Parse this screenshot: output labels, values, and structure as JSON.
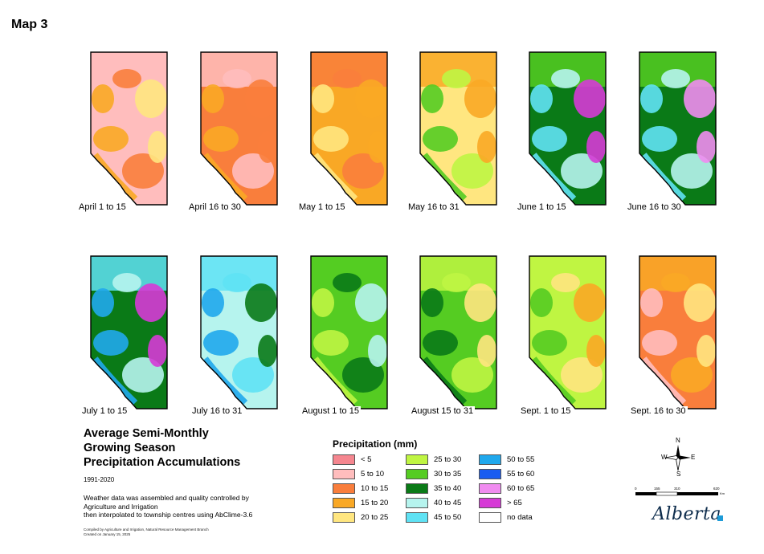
{
  "map_label": "Map 3",
  "title": {
    "line1": "Average Semi-Monthly",
    "line2": "Growing Season",
    "line3": "Precipitation Accumulations"
  },
  "period": "1991-2020",
  "note": {
    "line1": "Weather data was assembled and quality controlled by",
    "line2": "Agriculture and Irrigation",
    "line3": "then interpolated to township centres using AbClime-3.6"
  },
  "credit": {
    "line1": "Compiled by Agriculture and Irrigation, Natural Resource Management Branch",
    "line2": "Created on January 15, 2025"
  },
  "legend": {
    "title": "Precipitation (mm)",
    "items": [
      {
        "label": "< 5",
        "color": "#f5868f"
      },
      {
        "label": "5 to 10",
        "color": "#ffbdbd"
      },
      {
        "label": "10 to 15",
        "color": "#f97e3c"
      },
      {
        "label": "15 to 20",
        "color": "#f9a825"
      },
      {
        "label": "20 to 25",
        "color": "#ffe680"
      },
      {
        "label": "25 to 30",
        "color": "#bff542"
      },
      {
        "label": "30 to 35",
        "color": "#55cc22"
      },
      {
        "label": "35 to 40",
        "color": "#0a7a17"
      },
      {
        "label": "40 to 45",
        "color": "#b6f4ee"
      },
      {
        "label": "45 to 50",
        "color": "#5fe2f4"
      },
      {
        "label": "50 to 55",
        "color": "#20a8ec"
      },
      {
        "label": "55 to 60",
        "color": "#1a5cf0"
      },
      {
        "label": "60 to 65",
        "color": "#f08cf0"
      },
      {
        "label": "> 65",
        "color": "#d63ad6"
      },
      {
        "label": "no data",
        "color": "#ffffff"
      }
    ]
  },
  "maps": [
    {
      "label": "April 1 to 15",
      "base": 1,
      "spots": [
        2,
        3,
        4
      ],
      "north": 1
    },
    {
      "label": "April 16 to 30",
      "base": 2,
      "spots": [
        1,
        3,
        2
      ],
      "north": 1
    },
    {
      "label": "May 1 to 15",
      "base": 3,
      "spots": [
        2,
        4,
        3
      ],
      "north": 2
    },
    {
      "label": "May 16 to 31",
      "base": 4,
      "spots": [
        5,
        6,
        3
      ],
      "north": 3
    },
    {
      "label": "June 1 to 15",
      "base": 7,
      "spots": [
        8,
        9,
        13
      ],
      "north": 6
    },
    {
      "label": "June 16 to 30",
      "base": 7,
      "spots": [
        8,
        9,
        12
      ],
      "north": 6
    },
    {
      "label": "July 1 to 15",
      "base": 7,
      "spots": [
        8,
        10,
        13
      ],
      "north": 9
    },
    {
      "label": "July 16 to 31",
      "base": 8,
      "spots": [
        9,
        10,
        7
      ],
      "north": 9
    },
    {
      "label": "August 1 to 15",
      "base": 6,
      "spots": [
        7,
        5,
        8
      ],
      "north": 6
    },
    {
      "label": "August 15 to 31",
      "base": 6,
      "spots": [
        5,
        7,
        4
      ],
      "north": 5
    },
    {
      "label": "Sept. 1 to 15",
      "base": 5,
      "spots": [
        4,
        6,
        3
      ],
      "north": 5
    },
    {
      "label": "Sept. 16 to 30",
      "base": 2,
      "spots": [
        3,
        1,
        4
      ],
      "north": 3
    }
  ],
  "compass": {
    "n": "N",
    "s": "S",
    "e": "E",
    "w": "W"
  },
  "scale": {
    "ticks": [
      "0",
      "155",
      "310",
      "620"
    ],
    "unit": "Km"
  },
  "logo": "Alberta"
}
